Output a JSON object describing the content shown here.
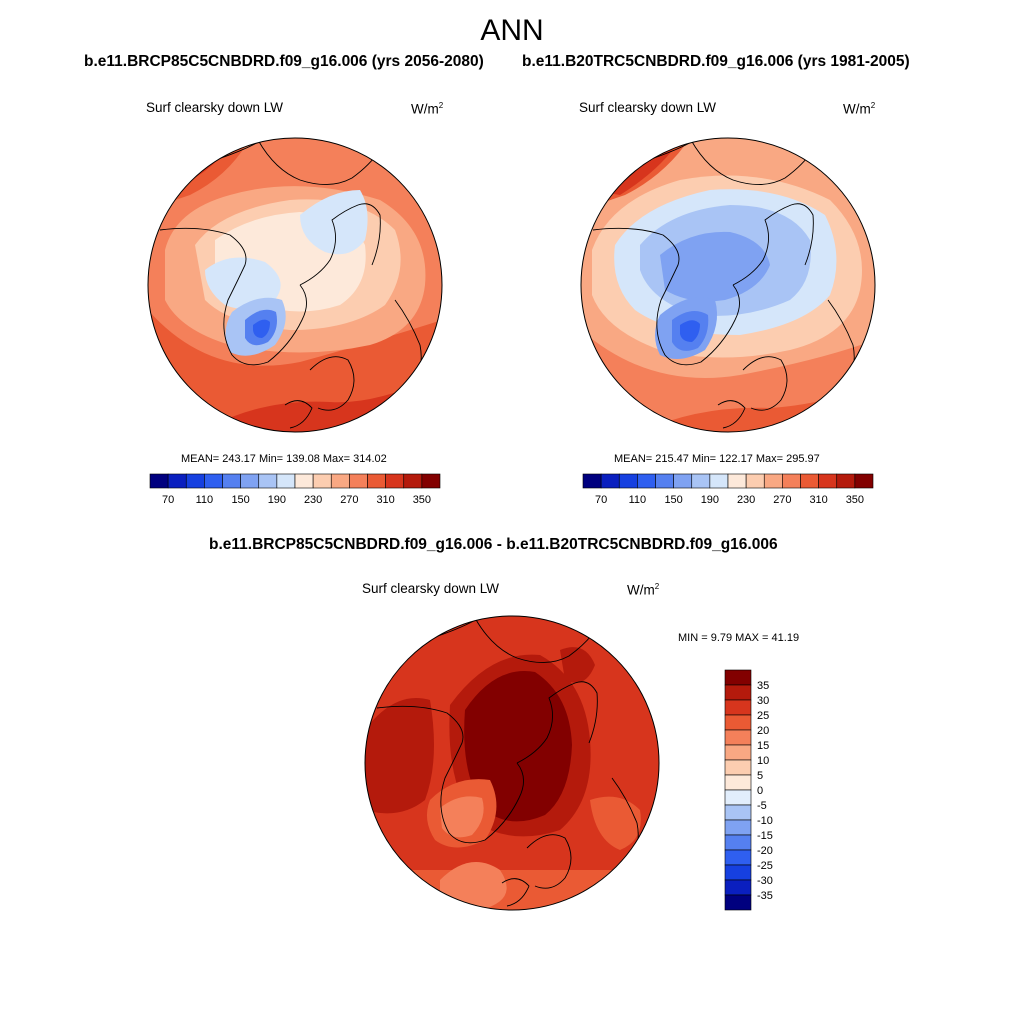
{
  "chart_data": [
    {
      "type": "heatmap",
      "projection": "north polar stereographic",
      "case_label": "b.e11.BRCP85C5CNBDRD.f09_g16.006 (yrs 2056-2080)",
      "title": "Surf clearsky down LW",
      "units_base": "W/m",
      "units_exp": "2",
      "stats_text": "MEAN= 243.17  Min= 139.08  Max= 314.02",
      "stats": {
        "mean": 243.17,
        "min": 139.08,
        "max": 314.02
      },
      "levels": [
        50,
        70,
        90,
        110,
        130,
        150,
        170,
        190,
        210,
        230,
        250,
        270,
        290,
        310,
        330,
        350
      ],
      "tick_labels": [
        "70",
        "110",
        "150",
        "190",
        "230",
        "270",
        "310",
        "350"
      ]
    },
    {
      "type": "heatmap",
      "projection": "north polar stereographic",
      "case_label": "b.e11.B20TRC5CNBDRD.f09_g16.006 (yrs 1981-2005)",
      "title": "Surf clearsky down LW",
      "units_base": "W/m",
      "units_exp": "2",
      "stats_text": "MEAN= 215.47  Min= 122.17  Max= 295.97",
      "stats": {
        "mean": 215.47,
        "min": 122.17,
        "max": 295.97
      },
      "levels": [
        50,
        70,
        90,
        110,
        130,
        150,
        170,
        190,
        210,
        230,
        250,
        270,
        290,
        310,
        330,
        350
      ],
      "tick_labels": [
        "70",
        "110",
        "150",
        "190",
        "230",
        "270",
        "310",
        "350"
      ]
    },
    {
      "type": "heatmap",
      "projection": "north polar stereographic",
      "case_label": "b.e11.BRCP85C5CNBDRD.f09_g16.006 - b.e11.B20TRC5CNBDRD.f09_g16.006",
      "title": "Surf clearsky down LW",
      "units_base": "W/m",
      "units_exp": "2",
      "stats_text": "MIN =   9.79 MAX =  41.19",
      "stats": {
        "min": 9.79,
        "max": 41.19
      },
      "levels": [
        -35,
        -30,
        -25,
        -20,
        -15,
        -10,
        -5,
        0,
        5,
        10,
        15,
        20,
        25,
        30,
        35
      ],
      "tick_labels": [
        "-35",
        "-30",
        "-25",
        "-20",
        "-15",
        "-10",
        "-5",
        "0",
        "5",
        "10",
        "15",
        "20",
        "25",
        "30",
        "35"
      ]
    }
  ],
  "main_title": "ANN",
  "colors": {
    "abs_scale": [
      "#00007f",
      "#0a1fbf",
      "#1640e0",
      "#2f5ff0",
      "#5580f0",
      "#7fa2f2",
      "#a9c4f5",
      "#d5e6fa",
      "#fde9da",
      "#fccdb0",
      "#f9a883",
      "#f4805a",
      "#ea5a34",
      "#d7351d",
      "#b41a0c",
      "#820000"
    ],
    "diff_scale": [
      "#00007f",
      "#0a1fbf",
      "#1640e0",
      "#2f5ff0",
      "#5580f0",
      "#7fa2f2",
      "#a9c4f5",
      "#e2eefc",
      "#fde9da",
      "#fccdb0",
      "#f9a883",
      "#f4805a",
      "#ea5a34",
      "#d7351d",
      "#b41a0c",
      "#820000"
    ]
  }
}
